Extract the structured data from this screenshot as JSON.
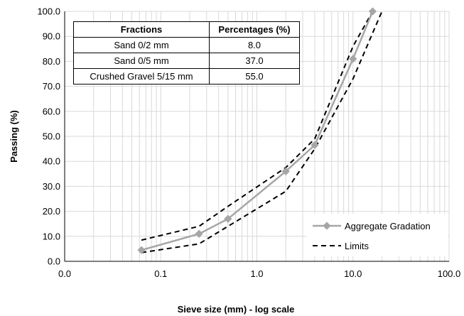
{
  "chart_data": {
    "type": "line",
    "xscale": "log",
    "xlim": [
      0.01,
      100
    ],
    "ylim": [
      0,
      100
    ],
    "xlabel": "Sieve size (mm) - log scale",
    "ylabel": "Passing (%)",
    "x_ticks": [
      0.01,
      0.1,
      1,
      10,
      100
    ],
    "x_tick_labels": [
      "0.0",
      "0.1",
      "1.0",
      "10.0",
      "100.0"
    ],
    "y_ticks": [
      0,
      10,
      20,
      30,
      40,
      50,
      60,
      70,
      80,
      90,
      100
    ],
    "y_tick_labels": [
      "0.0",
      "10.0",
      "20.0",
      "30.0",
      "40.0",
      "50.0",
      "60.0",
      "70.0",
      "80.0",
      "90.0",
      "100.0"
    ],
    "grid": true,
    "legend_position": "bottom-right",
    "series": [
      {
        "name": "Aggregate Gradation",
        "style": "solid",
        "marker": "diamond",
        "color": "#a6a6a6",
        "x": [
          0.063,
          0.25,
          0.5,
          2,
          4,
          10,
          16
        ],
        "y": [
          4.5,
          11,
          17,
          36,
          46.5,
          81,
          100
        ]
      },
      {
        "name": "Limits",
        "style": "dashed",
        "color": "#000000",
        "x": [
          0.063,
          0.25,
          0.5,
          2,
          4,
          10,
          16
        ],
        "y": [
          8.5,
          14,
          22,
          37.5,
          49,
          86,
          100
        ]
      },
      {
        "name": "",
        "style": "dashed",
        "color": "#000000",
        "x": [
          0.063,
          0.25,
          0.5,
          2,
          4,
          10,
          20
        ],
        "y": [
          3.5,
          7,
          14,
          28,
          45,
          73,
          100
        ]
      }
    ]
  },
  "table": {
    "headers": [
      "Fractions",
      "Percentages (%)"
    ],
    "rows": [
      [
        "Sand 0/2 mm",
        "8.0"
      ],
      [
        "Sand 0/5 mm",
        "37.0"
      ],
      [
        "Crushed Gravel 5/15 mm",
        "55.0"
      ]
    ]
  }
}
